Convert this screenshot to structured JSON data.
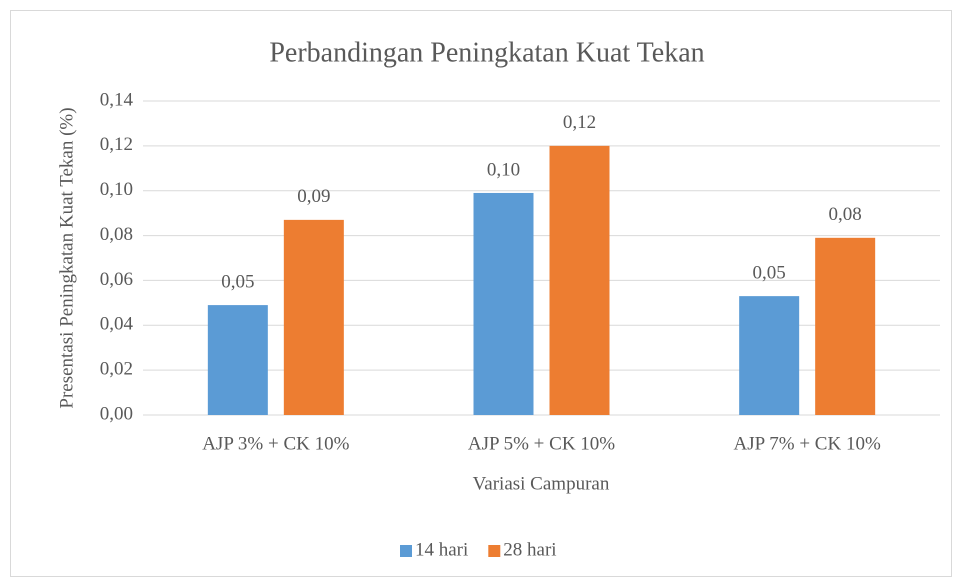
{
  "chart_data": {
    "type": "bar",
    "title": "Perbandingan Peningkatan Kuat Tekan",
    "x_label": "Variasi Campuran",
    "y_label": "Presentasi Peningkatan Kuat Tekan (%)",
    "categories": [
      "AJP 3% + CK 10%",
      "AJP 5% + CK 10%",
      "AJP 7% + CK 10%"
    ],
    "series": [
      {
        "name": "14 hari",
        "color": "#5b9bd5",
        "values": [
          0.049,
          0.099,
          0.053
        ],
        "value_labels": [
          "0,05",
          "0,10",
          "0,05"
        ]
      },
      {
        "name": "28 hari",
        "color": "#ed7d31",
        "values": [
          0.087,
          0.12,
          0.079
        ],
        "value_labels": [
          "0,09",
          "0,12",
          "0,08"
        ]
      }
    ],
    "ylim": [
      0,
      0.14
    ],
    "yticks": [
      {
        "value": 0,
        "label": "0,00"
      },
      {
        "value": 0.02,
        "label": "0,02"
      },
      {
        "value": 0.04,
        "label": "0,04"
      },
      {
        "value": 0.06,
        "label": "0,06"
      },
      {
        "value": 0.08,
        "label": "0,08"
      },
      {
        "value": 0.1,
        "label": "0,10"
      },
      {
        "value": 0.12,
        "label": "0,12"
      },
      {
        "value": 0.14,
        "label": "0,14"
      }
    ],
    "grid": true,
    "legend": "bottom"
  }
}
